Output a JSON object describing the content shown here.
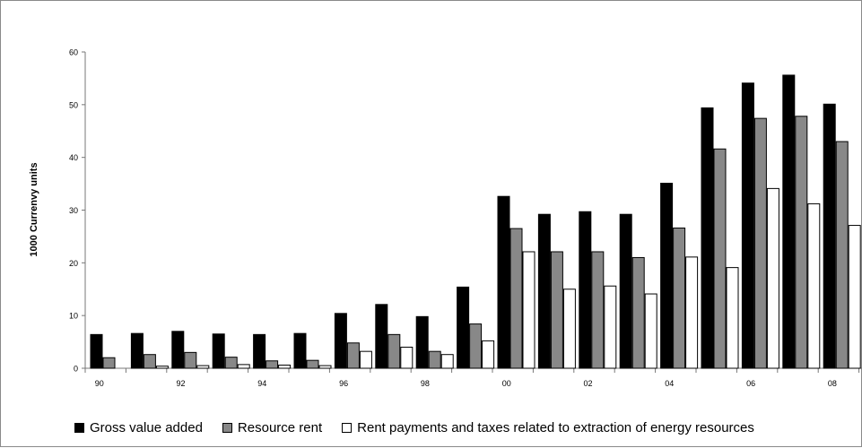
{
  "chart_data": {
    "type": "bar",
    "title": "",
    "xlabel": "",
    "ylabel": "1000 Currenvy units",
    "ylim": [
      0,
      60
    ],
    "yticks": [
      0,
      10,
      20,
      30,
      40,
      50,
      60
    ],
    "grid": false,
    "legend_position": "bottom",
    "categories": [
      "90",
      "91",
      "92",
      "93",
      "94",
      "95",
      "96",
      "97",
      "98",
      "99",
      "00",
      "01",
      "02",
      "03",
      "04",
      "05",
      "06",
      "07",
      "08"
    ],
    "tick_labels": [
      "90",
      "",
      "92",
      "",
      "94",
      "",
      "96",
      "",
      "98",
      "",
      "00",
      "",
      "02",
      "",
      "04",
      "",
      "06",
      "",
      "08"
    ],
    "series": [
      {
        "name": "Gross value added",
        "color": "#000000",
        "values": [
          6.4,
          6.6,
          7.0,
          6.5,
          6.4,
          6.6,
          10.4,
          12.1,
          9.8,
          15.4,
          32.6,
          29.2,
          29.7,
          29.2,
          35.1,
          49.4,
          54.1,
          55.6,
          50.1
        ]
      },
      {
        "name": "Resource rent",
        "color": "#888888",
        "values": [
          2.0,
          2.6,
          3.0,
          2.1,
          1.4,
          1.5,
          4.8,
          6.4,
          3.2,
          8.4,
          26.5,
          22.1,
          22.1,
          21.0,
          26.6,
          41.6,
          47.4,
          47.8,
          43.0
        ]
      },
      {
        "name": "Rent payments and taxes related to extraction of energy resources",
        "color": "#ffffff",
        "values": [
          0.0,
          0.4,
          0.5,
          0.7,
          0.6,
          0.5,
          3.2,
          4.0,
          2.6,
          5.2,
          22.1,
          15.0,
          15.6,
          14.1,
          21.1,
          19.1,
          34.1,
          31.2,
          27.1
        ]
      }
    ]
  }
}
